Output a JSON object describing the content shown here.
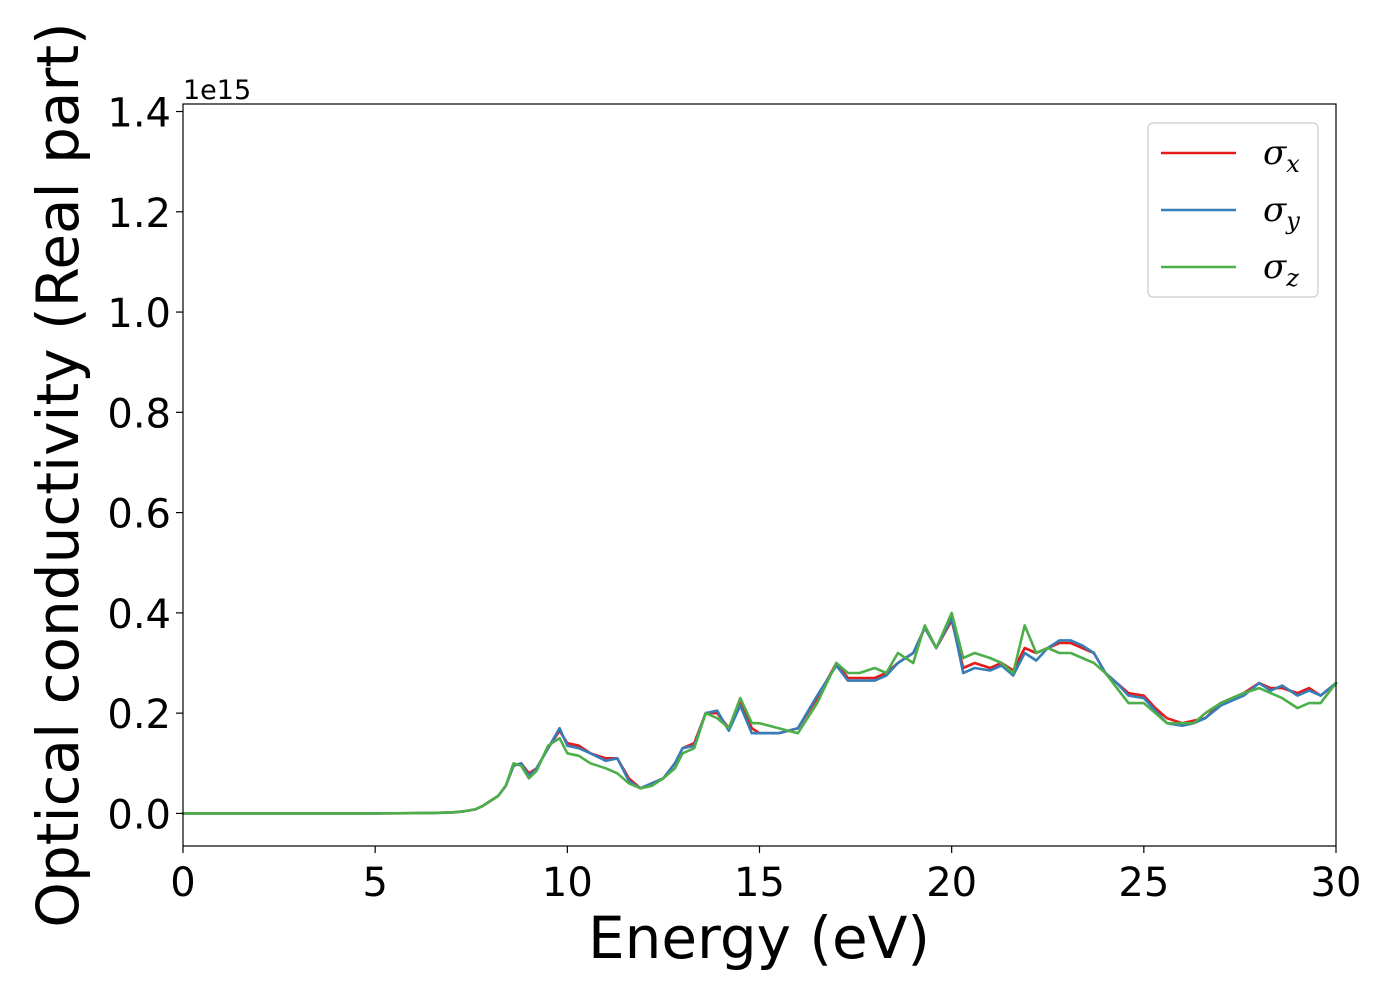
{
  "chart_data": {
    "type": "line",
    "title": "",
    "xlabel": "Energy (eV)",
    "ylabel": "Optical conductivity (Real part)",
    "y_offset_label": "1e15",
    "xlim": [
      0,
      30
    ],
    "ylim": [
      -0.065,
      1.415
    ],
    "xticks": [
      0,
      5,
      10,
      15,
      20,
      25,
      30
    ],
    "xtick_labels": [
      "0",
      "5",
      "10",
      "15",
      "20",
      "25",
      "30"
    ],
    "yticks": [
      0.0,
      0.2,
      0.4,
      0.6,
      0.8,
      1.0,
      1.2,
      1.4
    ],
    "ytick_labels": [
      "0.0",
      "0.2",
      "0.4",
      "0.6",
      "0.8",
      "1.0",
      "1.2",
      "1.4"
    ],
    "grid": false,
    "legend_position": "top-right",
    "series": [
      {
        "name": "σx",
        "symbol": "σ",
        "subscript": "x",
        "color": "#e41a1c",
        "x": [
          0,
          1,
          2,
          3,
          4,
          5,
          6,
          6.5,
          7,
          7.3,
          7.6,
          7.8,
          8.0,
          8.2,
          8.4,
          8.6,
          8.8,
          9.0,
          9.2,
          9.5,
          9.8,
          10.0,
          10.3,
          10.6,
          11.0,
          11.3,
          11.6,
          11.9,
          12.2,
          12.5,
          12.8,
          13.0,
          13.3,
          13.6,
          13.9,
          14.2,
          14.5,
          14.8,
          15.0,
          15.5,
          16.0,
          16.5,
          17.0,
          17.3,
          17.6,
          18.0,
          18.3,
          18.6,
          19.0,
          19.3,
          19.6,
          20.0,
          20.3,
          20.6,
          21.0,
          21.3,
          21.6,
          21.9,
          22.2,
          22.5,
          22.8,
          23.1,
          23.4,
          23.7,
          24.0,
          24.3,
          24.6,
          25.0,
          25.3,
          25.6,
          26.0,
          26.3,
          26.6,
          27.0,
          27.3,
          27.6,
          28.0,
          28.3,
          28.6,
          29.0,
          29.3,
          29.6,
          30.0
        ],
        "y": [
          0,
          0,
          0,
          0,
          0,
          0,
          0.0005,
          0.001,
          0.002,
          0.004,
          0.008,
          0.015,
          0.025,
          0.035,
          0.055,
          0.095,
          0.1,
          0.08,
          0.09,
          0.13,
          0.165,
          0.14,
          0.135,
          0.12,
          0.11,
          0.11,
          0.07,
          0.05,
          0.06,
          0.07,
          0.1,
          0.13,
          0.14,
          0.2,
          0.2,
          0.17,
          0.22,
          0.17,
          0.16,
          0.16,
          0.17,
          0.23,
          0.3,
          0.27,
          0.27,
          0.27,
          0.28,
          0.3,
          0.32,
          0.37,
          0.33,
          0.385,
          0.29,
          0.3,
          0.29,
          0.3,
          0.285,
          0.33,
          0.32,
          0.33,
          0.34,
          0.34,
          0.33,
          0.32,
          0.28,
          0.26,
          0.24,
          0.235,
          0.21,
          0.19,
          0.18,
          0.185,
          0.19,
          0.22,
          0.23,
          0.24,
          0.26,
          0.25,
          0.25,
          0.24,
          0.25,
          0.235,
          0.26
        ]
      },
      {
        "name": "σy",
        "symbol": "σ",
        "subscript": "y",
        "color": "#377eb8",
        "x": [
          0,
          1,
          2,
          3,
          4,
          5,
          6,
          6.5,
          7,
          7.3,
          7.6,
          7.8,
          8.0,
          8.2,
          8.4,
          8.6,
          8.8,
          9.0,
          9.2,
          9.5,
          9.8,
          10.0,
          10.3,
          10.6,
          11.0,
          11.3,
          11.6,
          11.9,
          12.2,
          12.5,
          12.8,
          13.0,
          13.3,
          13.6,
          13.9,
          14.2,
          14.5,
          14.8,
          15.0,
          15.5,
          16.0,
          16.5,
          17.0,
          17.3,
          17.6,
          18.0,
          18.3,
          18.6,
          19.0,
          19.3,
          19.6,
          20.0,
          20.3,
          20.6,
          21.0,
          21.3,
          21.6,
          21.9,
          22.2,
          22.5,
          22.8,
          23.1,
          23.4,
          23.7,
          24.0,
          24.3,
          24.6,
          25.0,
          25.3,
          25.6,
          26.0,
          26.3,
          26.6,
          27.0,
          27.3,
          27.6,
          28.0,
          28.3,
          28.6,
          29.0,
          29.3,
          29.6,
          30.0
        ],
        "y": [
          0,
          0,
          0,
          0,
          0,
          0,
          0.0005,
          0.001,
          0.002,
          0.004,
          0.008,
          0.015,
          0.025,
          0.035,
          0.055,
          0.095,
          0.1,
          0.075,
          0.09,
          0.13,
          0.17,
          0.135,
          0.13,
          0.12,
          0.105,
          0.11,
          0.065,
          0.05,
          0.06,
          0.07,
          0.1,
          0.13,
          0.135,
          0.2,
          0.205,
          0.165,
          0.215,
          0.16,
          0.16,
          0.16,
          0.17,
          0.235,
          0.295,
          0.265,
          0.265,
          0.265,
          0.275,
          0.3,
          0.32,
          0.37,
          0.33,
          0.39,
          0.28,
          0.29,
          0.285,
          0.295,
          0.275,
          0.32,
          0.305,
          0.33,
          0.345,
          0.345,
          0.335,
          0.32,
          0.28,
          0.26,
          0.235,
          0.23,
          0.205,
          0.18,
          0.175,
          0.18,
          0.19,
          0.215,
          0.225,
          0.235,
          0.26,
          0.245,
          0.255,
          0.235,
          0.245,
          0.235,
          0.26
        ]
      },
      {
        "name": "σz",
        "symbol": "σ",
        "subscript": "z",
        "color": "#4daf4a",
        "x": [
          0,
          1,
          2,
          3,
          4,
          5,
          6,
          6.5,
          7,
          7.3,
          7.6,
          7.8,
          8.0,
          8.2,
          8.4,
          8.6,
          8.8,
          9.0,
          9.2,
          9.5,
          9.8,
          10.0,
          10.3,
          10.6,
          11.0,
          11.3,
          11.6,
          11.9,
          12.2,
          12.5,
          12.8,
          13.0,
          13.3,
          13.6,
          13.9,
          14.2,
          14.5,
          14.8,
          15.0,
          15.5,
          16.0,
          16.5,
          17.0,
          17.3,
          17.6,
          18.0,
          18.3,
          18.6,
          19.0,
          19.3,
          19.6,
          20.0,
          20.3,
          20.6,
          21.0,
          21.3,
          21.6,
          21.9,
          22.2,
          22.5,
          22.8,
          23.1,
          23.4,
          23.7,
          24.0,
          24.3,
          24.6,
          25.0,
          25.3,
          25.6,
          26.0,
          26.3,
          26.6,
          27.0,
          27.3,
          27.6,
          28.0,
          28.3,
          28.6,
          29.0,
          29.3,
          29.6,
          30.0
        ],
        "y": [
          0,
          0,
          0,
          0,
          0,
          0,
          0.0005,
          0.001,
          0.002,
          0.004,
          0.008,
          0.015,
          0.025,
          0.035,
          0.055,
          0.1,
          0.095,
          0.07,
          0.085,
          0.135,
          0.15,
          0.12,
          0.115,
          0.1,
          0.09,
          0.08,
          0.06,
          0.05,
          0.055,
          0.07,
          0.09,
          0.12,
          0.13,
          0.2,
          0.19,
          0.17,
          0.23,
          0.18,
          0.18,
          0.17,
          0.16,
          0.22,
          0.3,
          0.28,
          0.28,
          0.29,
          0.28,
          0.32,
          0.3,
          0.375,
          0.33,
          0.4,
          0.31,
          0.32,
          0.31,
          0.3,
          0.28,
          0.375,
          0.32,
          0.33,
          0.32,
          0.32,
          0.31,
          0.3,
          0.28,
          0.25,
          0.22,
          0.22,
          0.2,
          0.18,
          0.18,
          0.18,
          0.2,
          0.22,
          0.23,
          0.24,
          0.25,
          0.24,
          0.23,
          0.21,
          0.22,
          0.22,
          0.26
        ]
      }
    ]
  }
}
